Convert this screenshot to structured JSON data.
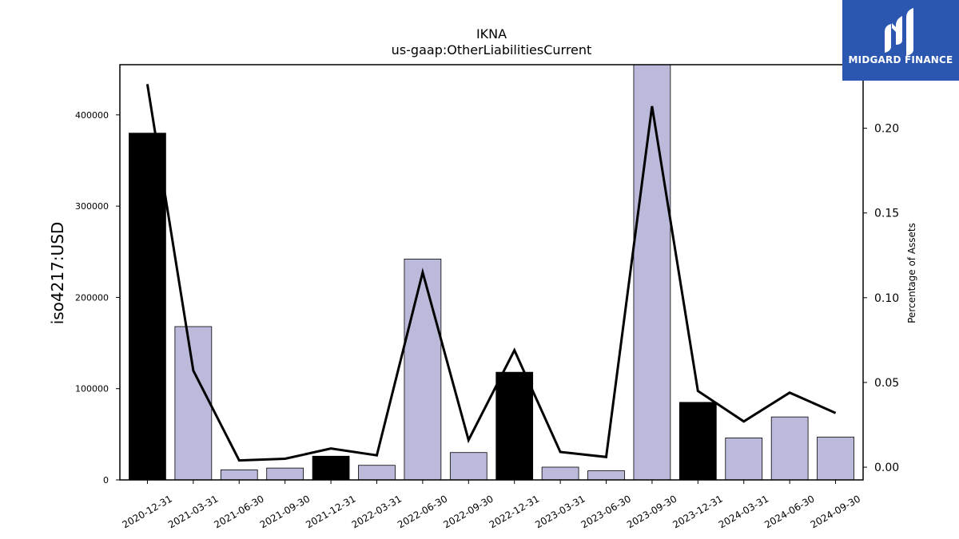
{
  "brand": {
    "name": "MIDGARD FINANCE",
    "logo_color": "#2b57b0"
  },
  "chart_data": {
    "type": "bar",
    "title": "IKNA",
    "subtitle": "us-gaap:OtherLiabilitiesCurrent",
    "ylabel": "iso4217:USD",
    "y2label": "Percentage of Assets",
    "categories": [
      "2020-12-31",
      "2021-03-31",
      "2021-06-30",
      "2021-09-30",
      "2021-12-31",
      "2022-03-31",
      "2022-06-30",
      "2022-09-30",
      "2022-12-31",
      "2023-03-31",
      "2023-06-30",
      "2023-09-30",
      "2023-12-31",
      "2024-03-31",
      "2024-06-30",
      "2024-09-30"
    ],
    "series": [
      {
        "kind": "bar",
        "values": [
          380000,
          168000,
          11000,
          13000,
          26000,
          16000,
          242000,
          30000,
          118000,
          14000,
          10000,
          455000,
          85000,
          46000,
          69000,
          47000
        ],
        "highlight": [
          true,
          false,
          false,
          false,
          true,
          false,
          false,
          false,
          true,
          false,
          false,
          false,
          true,
          false,
          false,
          false
        ],
        "color": "#bcbadb",
        "highlight_color": "#000000"
      },
      {
        "kind": "line",
        "axis": "right",
        "values": [
          0.226,
          0.057,
          0.004,
          0.005,
          0.011,
          0.007,
          0.115,
          0.016,
          0.069,
          0.009,
          0.006,
          0.213,
          0.045,
          0.027,
          0.044,
          0.032
        ],
        "color": "#000000"
      }
    ],
    "ylim": [
      0,
      455000
    ],
    "yticks": [
      0,
      100000,
      200000,
      300000,
      400000
    ],
    "ytick_labels": [
      "0",
      "100000",
      "200000",
      "300000",
      "400000"
    ],
    "y2lim": [
      -0.0075,
      0.2375
    ],
    "y2ticks": [
      0.0,
      0.05,
      0.1,
      0.15,
      0.2
    ],
    "y2tick_labels": [
      "0.00",
      "0.05",
      "0.10",
      "0.15",
      "0.20"
    ],
    "grid": false,
    "legend": "none"
  }
}
